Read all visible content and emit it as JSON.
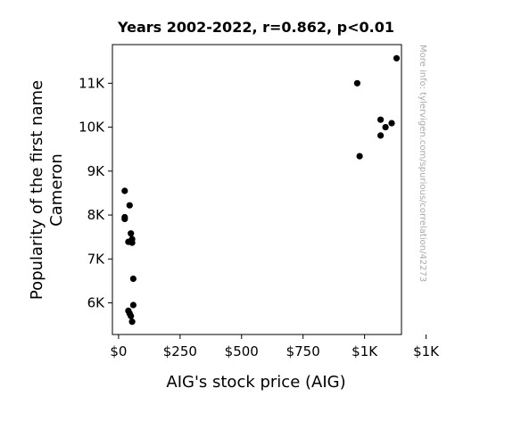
{
  "chart_data": {
    "type": "scatter",
    "title": "Years 2002-2022, r=0.862, p<0.01",
    "xlabel": "AIG's stock price (AIG)",
    "ylabel_lines": [
      "Popularity of the first name",
      "Cameron"
    ],
    "side_note": "More info: tylervigen.com/spurious/correlation/42273",
    "xlim": [
      -25,
      1150
    ],
    "ylim": [
      5280,
      11880
    ],
    "x_ticks": [
      {
        "value": 0,
        "label": "$0"
      },
      {
        "value": 250,
        "label": "$250"
      },
      {
        "value": 500,
        "label": "$500"
      },
      {
        "value": 750,
        "label": "$750"
      },
      {
        "value": 1000,
        "label": "$1K"
      },
      {
        "value": 1250,
        "label": "$1K"
      }
    ],
    "y_ticks": [
      {
        "value": 6000,
        "label": "6K"
      },
      {
        "value": 7000,
        "label": "7K"
      },
      {
        "value": 8000,
        "label": "8K"
      },
      {
        "value": 9000,
        "label": "9K"
      },
      {
        "value": 10000,
        "label": "10K"
      },
      {
        "value": 11000,
        "label": "11K"
      }
    ],
    "marker_color": "#000000",
    "points": [
      {
        "x": 1130,
        "y": 11570
      },
      {
        "x": 970,
        "y": 11000
      },
      {
        "x": 980,
        "y": 9340
      },
      {
        "x": 1110,
        "y": 10090
      },
      {
        "x": 1065,
        "y": 10170
      },
      {
        "x": 1065,
        "y": 9810
      },
      {
        "x": 1085,
        "y": 10000
      },
      {
        "x": 25,
        "y": 8550
      },
      {
        "x": 45,
        "y": 8220
      },
      {
        "x": 25,
        "y": 7950
      },
      {
        "x": 25,
        "y": 7910
      },
      {
        "x": 50,
        "y": 7580
      },
      {
        "x": 55,
        "y": 7450
      },
      {
        "x": 40,
        "y": 7390
      },
      {
        "x": 55,
        "y": 7370
      },
      {
        "x": 60,
        "y": 6550
      },
      {
        "x": 60,
        "y": 5950
      },
      {
        "x": 40,
        "y": 5820
      },
      {
        "x": 45,
        "y": 5760
      },
      {
        "x": 50,
        "y": 5700
      },
      {
        "x": 55,
        "y": 5570
      }
    ]
  }
}
